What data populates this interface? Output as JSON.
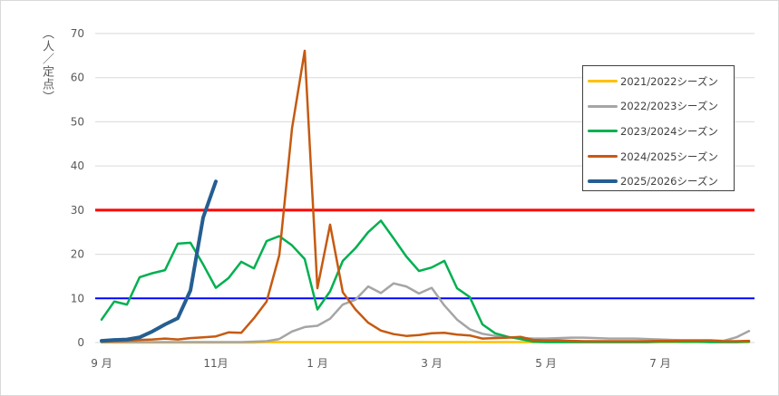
{
  "chart_data": {
    "type": "line",
    "ylabel": "（人／定点）",
    "ylim": [
      0,
      70
    ],
    "yticks": [
      0,
      10,
      20,
      30,
      40,
      50,
      60,
      70
    ],
    "grid": true,
    "legend_position": "top-right",
    "x_tick_labels": [
      {
        "week_index": 0,
        "label": "9 月"
      },
      {
        "week_index": 9,
        "label": "11月"
      },
      {
        "week_index": 17,
        "label": "1 月"
      },
      {
        "week_index": 26,
        "label": "3 月"
      },
      {
        "week_index": 35,
        "label": "5 月"
      },
      {
        "week_index": 44,
        "label": "7 月"
      }
    ],
    "reference_lines": [
      {
        "value": 30,
        "color": "#ff0000"
      },
      {
        "value": 10,
        "color": "#0000ff"
      }
    ],
    "series": [
      {
        "name": "2021/2022シーズン",
        "color": "#ffc000",
        "width": 2.5,
        "values": [
          0,
          0,
          0,
          0,
          0,
          0,
          0,
          0,
          0,
          0,
          0,
          0,
          0,
          0.1,
          0.1,
          0.1,
          0.1,
          0.1,
          0.1,
          0.1,
          0.1,
          0.1,
          0.1,
          0.1,
          0.1,
          0.1,
          0.1,
          0.1,
          0.1,
          0.1,
          0.1,
          0.1,
          0.1,
          0.1,
          0.1,
          0.1,
          0.1,
          0.1,
          0.1,
          0.1,
          0.1,
          0.1,
          0.1,
          0.1,
          0.1,
          0.1,
          0.1,
          0.1,
          0.1,
          0.1,
          0.1,
          0.1
        ]
      },
      {
        "name": "2022/2023シーズン",
        "color": "#a5a5a5",
        "width": 2.5,
        "values": [
          0.1,
          0.1,
          0.1,
          0.1,
          0.1,
          0.1,
          0.1,
          0.1,
          0.1,
          0.1,
          0.1,
          0.1,
          0.2,
          0.3,
          0.8,
          2.5,
          3.5,
          3.8,
          5.4,
          8.6,
          9.7,
          12.7,
          11.2,
          13.4,
          12.7,
          11.1,
          12.4,
          8.4,
          5.2,
          3.0,
          2.0,
          1.5,
          1.2,
          1.0,
          0.9,
          0.9,
          1.0,
          1.1,
          1.1,
          1.0,
          0.9,
          0.9,
          0.9,
          0.8,
          0.7,
          0.6,
          0.5,
          0.5,
          0.5,
          0.4,
          1.2,
          2.6
        ]
      },
      {
        "name": "2023/2024シーズン",
        "color": "#00b050",
        "width": 2.5,
        "values": [
          5.2,
          9.3,
          8.6,
          14.8,
          15.7,
          16.4,
          22.4,
          22.6,
          17.7,
          12.4,
          14.6,
          18.3,
          16.8,
          23.0,
          24.1,
          22.0,
          18.9,
          7.5,
          11.6,
          18.5,
          21.4,
          25.0,
          27.6,
          23.6,
          19.5,
          16.2,
          17.0,
          18.5,
          12.3,
          10.3,
          4.1,
          2.1,
          1.3,
          0.8,
          0.2,
          0.1,
          0.1,
          0.1,
          0.1,
          0.1,
          0.1,
          0.1,
          0.1,
          0.1,
          0.2,
          0.2,
          0.2,
          0.2,
          0.1,
          0.1,
          0.1,
          0.2
        ]
      },
      {
        "name": "2024/2025シーズン",
        "color": "#c55a11",
        "width": 2.5,
        "values": [
          0.2,
          0.3,
          0.4,
          0.6,
          0.7,
          0.9,
          0.7,
          1.0,
          1.2,
          1.4,
          2.3,
          2.2,
          5.5,
          9.3,
          19.8,
          48.5,
          66.1,
          12.3,
          26.7,
          11.4,
          7.5,
          4.5,
          2.7,
          1.9,
          1.5,
          1.7,
          2.1,
          2.2,
          1.8,
          1.6,
          0.9,
          1.0,
          1.1,
          1.3,
          0.6,
          0.5,
          0.5,
          0.4,
          0.3,
          0.3,
          0.3,
          0.3,
          0.3,
          0.3,
          0.4,
          0.4,
          0.5,
          0.5,
          0.5,
          0.3,
          0.3,
          0.4
        ]
      },
      {
        "name": "2025/2026シーズン",
        "color": "#255e91",
        "width": 4,
        "values": [
          0.4,
          0.6,
          0.7,
          1.2,
          2.5,
          4.1,
          5.5,
          11.8,
          28.3,
          36.5
        ]
      }
    ]
  }
}
